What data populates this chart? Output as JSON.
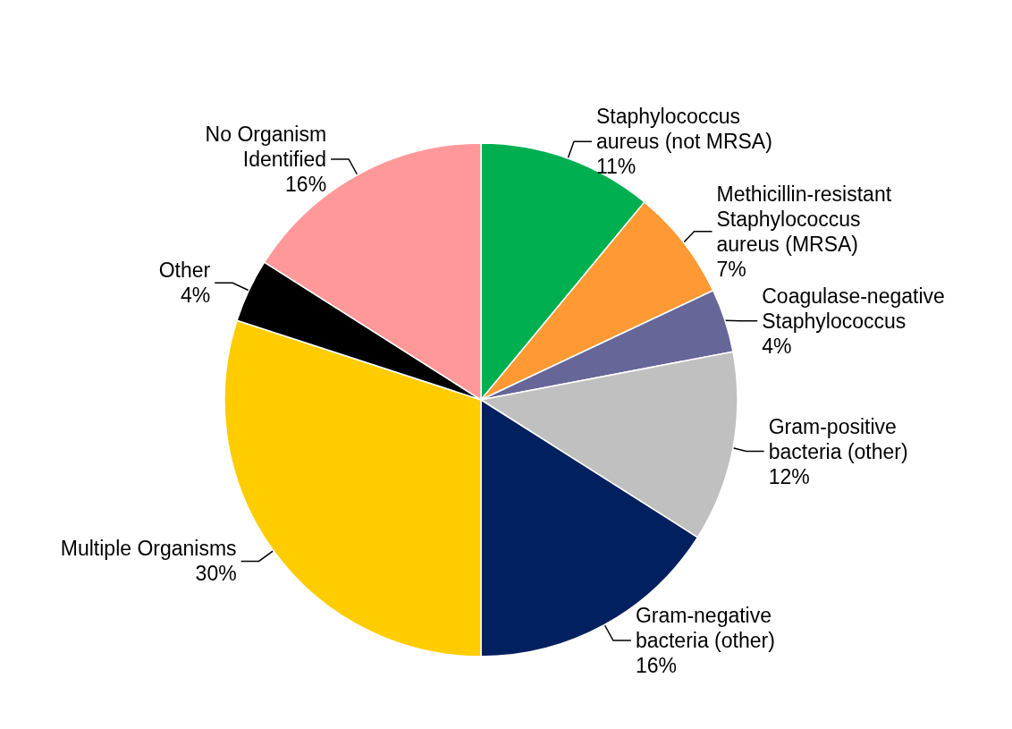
{
  "chart_data": {
    "type": "pie",
    "categories": [
      "Staphylococcus\naureus (not MRSA)",
      "Methicillin-resistant\nStaphylococcus\naureus (MRSA)",
      "Coagulase-negative\nStaphylococcus",
      "Gram-positive\nbacteria (other)",
      "Gram-negative\nbacteria (other)",
      "Multiple Organisms",
      "Other",
      "No Organism\nIdentified"
    ],
    "values": [
      11,
      7,
      4,
      12,
      16,
      30,
      4,
      16
    ],
    "value_labels": [
      "11%",
      "7%",
      "4%",
      "12%",
      "16%",
      "30%",
      "4%",
      "16%"
    ],
    "colors": [
      "#00b050",
      "#ff9933",
      "#666699",
      "#c0c0c0",
      "#002060",
      "#ffcc00",
      "#000000",
      "#ff9999"
    ],
    "legend": false
  }
}
